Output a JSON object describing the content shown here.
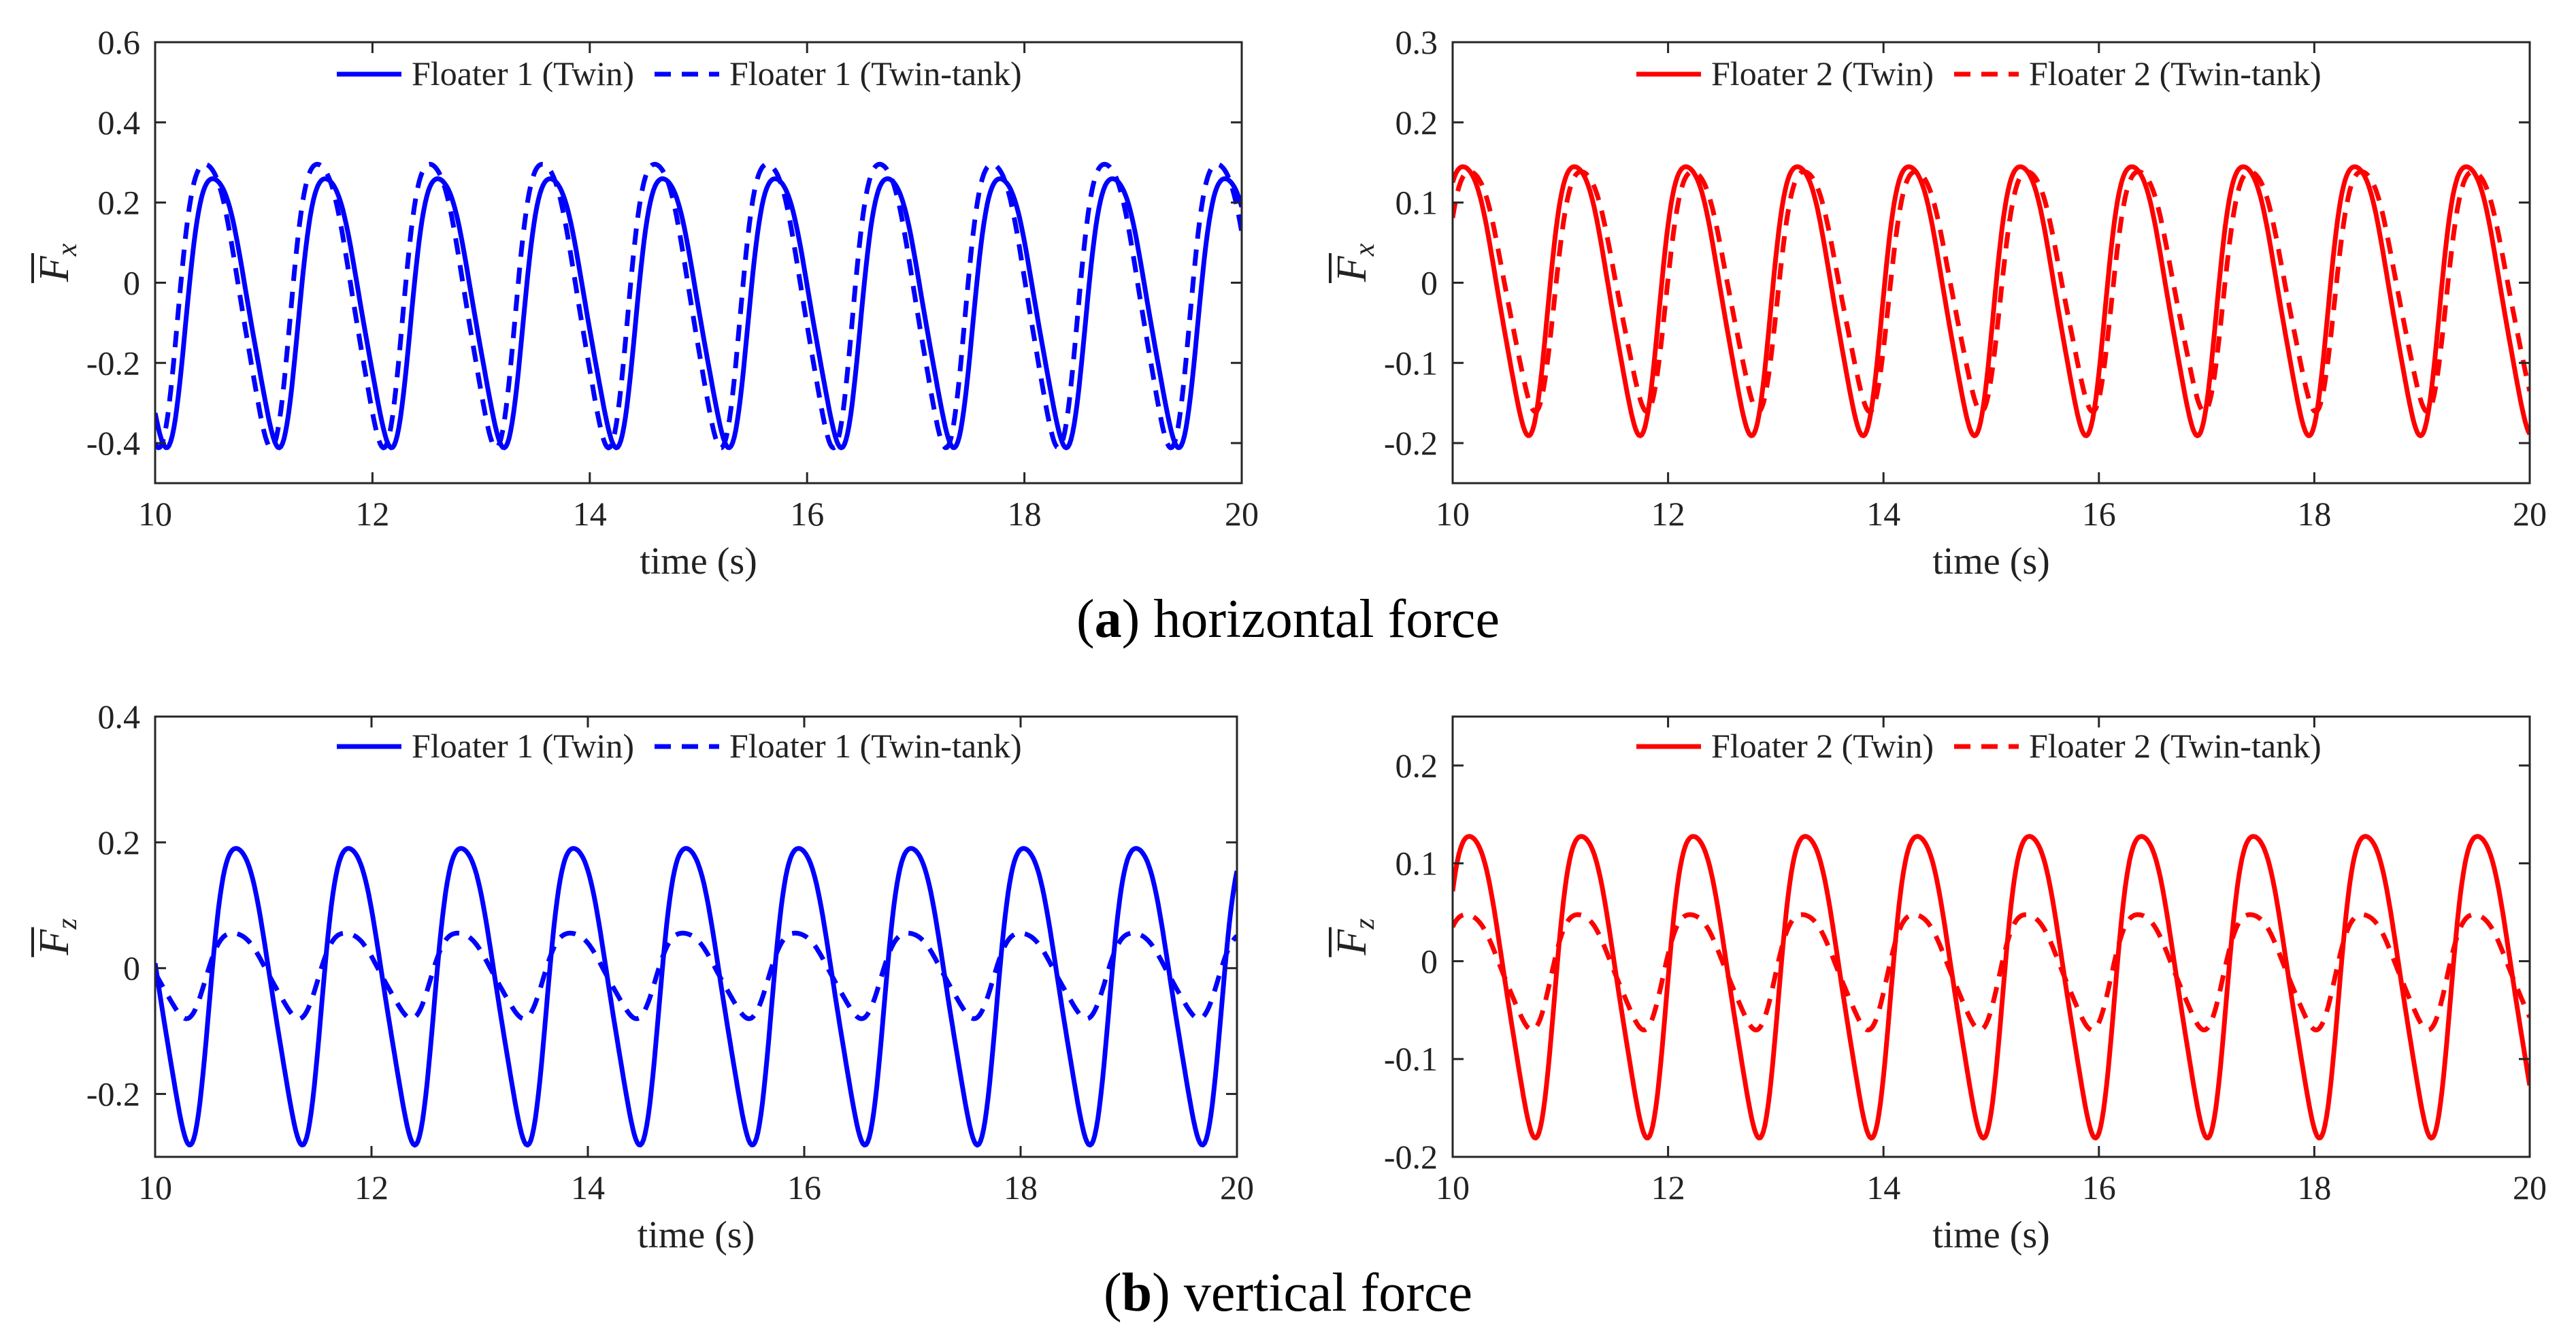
{
  "captions": [
    {
      "letter": "a",
      "text": "horizontal force"
    },
    {
      "letter": "b",
      "text": "vertical force"
    }
  ],
  "chart_data": [
    {
      "id": "a-left",
      "type": "line",
      "ylabel_symbol": "F",
      "ylabel_sub": "x",
      "xlabel": "time (s)",
      "xlim": [
        10,
        20
      ],
      "ylim": [
        -0.5,
        0.6
      ],
      "xticks": [
        10,
        12,
        14,
        16,
        18,
        20
      ],
      "xtick_labels": [
        "10",
        "12",
        "14",
        "16",
        "18",
        "20"
      ],
      "yticks": [
        -0.4,
        -0.2,
        0,
        0.2,
        0.4,
        0.6
      ],
      "ytick_labels": [
        "-0.4",
        "-0.2",
        "0",
        "0.2",
        "0.4",
        "0.6"
      ],
      "period": 1.035,
      "series": [
        {
          "name": "Floater 1 (Twin)",
          "color": "#0000ff",
          "dash": false,
          "amplitude": 0.37,
          "offset": -0.04,
          "phase": 0.03
        },
        {
          "name": "Floater 1 (Twin-tank)",
          "color": "#0000ff",
          "dash": true,
          "amplitude": 0.39,
          "offset": -0.02,
          "phase": 0.1
        }
      ]
    },
    {
      "id": "a-right",
      "type": "line",
      "ylabel_symbol": "F",
      "ylabel_sub": "x",
      "xlabel": "time (s)",
      "xlim": [
        10,
        20
      ],
      "ylim": [
        -0.25,
        0.3
      ],
      "xticks": [
        10,
        12,
        14,
        16,
        18,
        20
      ],
      "xtick_labels": [
        "10",
        "12",
        "14",
        "16",
        "18",
        "20"
      ],
      "yticks": [
        -0.2,
        -0.1,
        0,
        0.1,
        0.2,
        0.3
      ],
      "ytick_labels": [
        "-0.2",
        "-0.1",
        "0",
        "0.1",
        "0.2",
        "0.3"
      ],
      "period": 1.035,
      "series": [
        {
          "name": "Floater 2 (Twin)",
          "color": "#ff0000",
          "dash": false,
          "amplitude": 0.185,
          "offset": -0.005,
          "phase": 0.45
        },
        {
          "name": "Floater 2 (Twin-tank)",
          "color": "#ff0000",
          "dash": true,
          "amplitude": 0.165,
          "offset": 0.005,
          "phase": 0.39
        }
      ]
    },
    {
      "id": "b-left",
      "type": "line",
      "ylabel_symbol": "F",
      "ylabel_sub": "z",
      "xlabel": "time (s)",
      "xlim": [
        10,
        20
      ],
      "ylim": [
        -0.3,
        0.4
      ],
      "xticks": [
        10,
        12,
        14,
        16,
        18,
        20
      ],
      "xtick_labels": [
        "10",
        "12",
        "14",
        "16",
        "18",
        "20"
      ],
      "yticks": [
        -0.2,
        0,
        0.2,
        0.4
      ],
      "ytick_labels": [
        "-0.2",
        "0",
        "0.2",
        "0.4"
      ],
      "period": 1.04,
      "series": [
        {
          "name": "Floater 1 (Twin)",
          "color": "#0000ff",
          "dash": false,
          "amplitude": 0.26,
          "offset": -0.02,
          "phase": 0.87
        },
        {
          "name": "Floater 1 (Twin-tank)",
          "color": "#0000ff",
          "dash": true,
          "amplitude": 0.075,
          "offset": -0.005,
          "phase": 0.9
        }
      ]
    },
    {
      "id": "b-right",
      "type": "line",
      "ylabel_symbol": "F",
      "ylabel_sub": "z",
      "xlabel": "time (s)",
      "xlim": [
        10,
        20
      ],
      "ylim": [
        -0.2,
        0.25
      ],
      "xticks": [
        10,
        12,
        14,
        16,
        18,
        20
      ],
      "xtick_labels": [
        "10",
        "12",
        "14",
        "16",
        "18",
        "20"
      ],
      "yticks": [
        -0.2,
        -0.1,
        0,
        0.1,
        0.2
      ],
      "ytick_labels": [
        "-0.2",
        "-0.1",
        "0",
        "0.1",
        "0.2"
      ],
      "period": 1.04,
      "series": [
        {
          "name": "Floater 2 (Twin)",
          "color": "#ff0000",
          "dash": false,
          "amplitude": 0.17,
          "offset": -0.01,
          "phase": 0.44
        },
        {
          "name": "Floater 2 (Twin-tank)",
          "color": "#ff0000",
          "dash": true,
          "amplitude": 0.065,
          "offset": -0.005,
          "phase": 0.47
        }
      ]
    }
  ]
}
